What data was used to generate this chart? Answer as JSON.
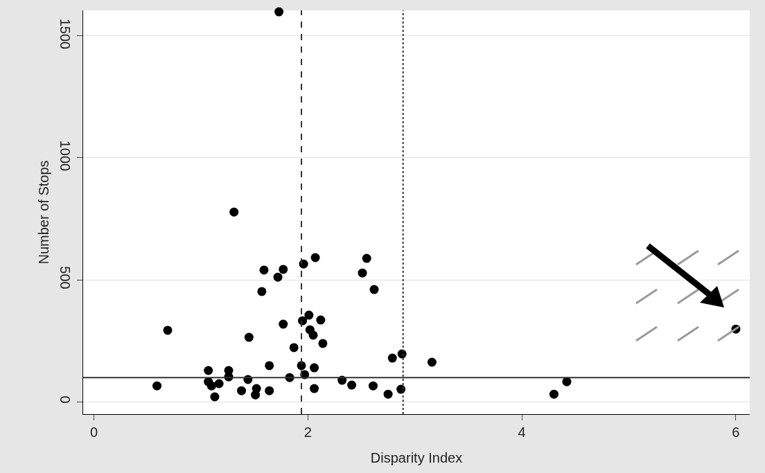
{
  "chart_data": {
    "type": "scatter",
    "xlabel": "Disparity Index",
    "ylabel": "Number of Stops",
    "x": [
      0.59,
      0.69,
      1.07,
      1.07,
      1.1,
      1.13,
      1.17,
      1.26,
      1.26,
      1.31,
      1.38,
      1.44,
      1.45,
      1.51,
      1.52,
      1.57,
      1.59,
      1.64,
      1.64,
      1.72,
      1.73,
      1.77,
      1.77,
      1.83,
      1.87,
      1.94,
      1.95,
      1.96,
      1.97,
      2.01,
      2.02,
      2.05,
      2.06,
      2.06,
      2.07,
      2.12,
      2.14,
      2.32,
      2.41,
      2.51,
      2.55,
      2.62,
      2.61,
      2.75,
      2.79,
      2.88,
      2.87,
      3.16,
      4.3,
      4.42,
      6.0
    ],
    "series": [
      {
        "color": "#000000",
        "values": [
          65,
          293,
          128,
          82,
          65,
          20,
          74,
          128,
          102,
          778,
          45,
          91,
          264,
          28,
          54,
          452,
          540,
          45,
          148,
          511,
          1599,
          318,
          543,
          99,
          222,
          148,
          332,
          565,
          111,
          355,
          295,
          273,
          139,
          54,
          591,
          335,
          239,
          88,
          68,
          528,
          588,
          460,
          65,
          31,
          179,
          196,
          51,
          162,
          31,
          82,
          298
        ]
      }
    ],
    "xlim": [
      -0.1,
      6.13
    ],
    "xticks": [
      0,
      2,
      4,
      6
    ],
    "ylim": [
      -51,
      1605
    ],
    "yticks": [
      0,
      500,
      1000,
      1500
    ],
    "ref_lines": [
      {
        "axis": "x",
        "value": 1.94,
        "line_style": "dashed",
        "color": "#333333"
      },
      {
        "axis": "x",
        "value": 2.89,
        "line_style": "dotted",
        "color": "#333333"
      },
      {
        "axis": "y",
        "value": 99,
        "line_style": "solid",
        "color": "#333333"
      }
    ],
    "grid": "y",
    "marker": "circle"
  }
}
